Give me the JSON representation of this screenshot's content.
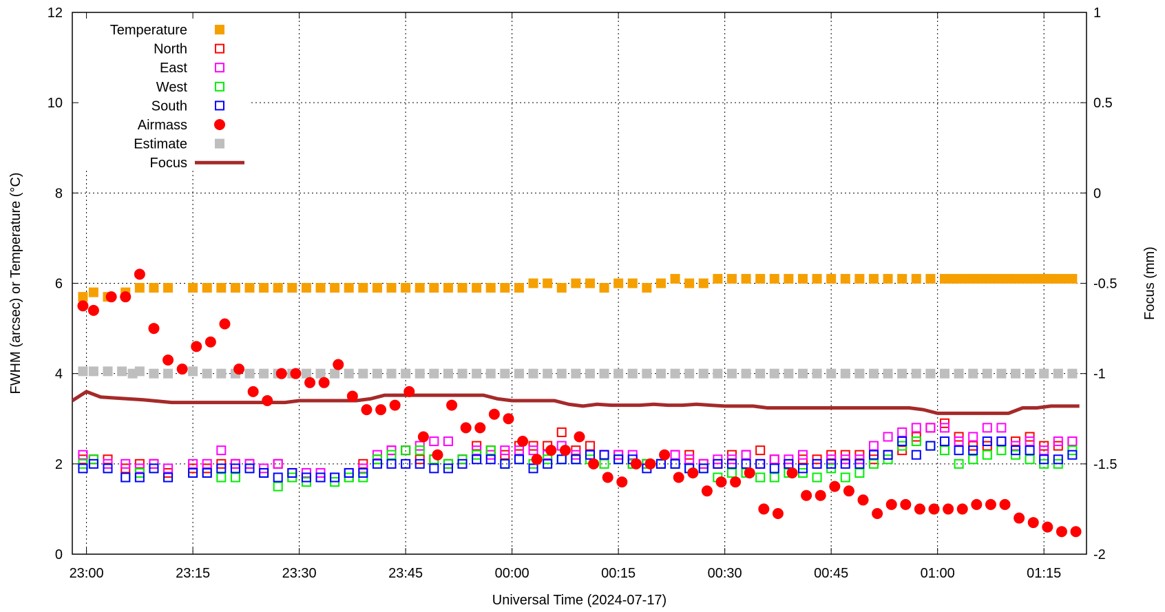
{
  "chart_data": {
    "type": "scatter",
    "title": "",
    "xlabel": "Universal Time (2024-07-17)",
    "ylabel": "FWHM (arcsec) or Temperature (°C)",
    "y2label": "Focus (mm)",
    "x_unit": "minutes after 23:00 UT (2024-07-17)",
    "xlim": [
      -2,
      141
    ],
    "ylim": [
      0,
      12
    ],
    "y2lim": [
      -2,
      1
    ],
    "x_ticks": [
      {
        "value": 0,
        "label": "23:00"
      },
      {
        "value": 15,
        "label": "23:15"
      },
      {
        "value": 30,
        "label": "23:30"
      },
      {
        "value": 45,
        "label": "23:45"
      },
      {
        "value": 60,
        "label": "00:00"
      },
      {
        "value": 75,
        "label": "00:15"
      },
      {
        "value": 90,
        "label": "00:30"
      },
      {
        "value": 105,
        "label": "00:45"
      },
      {
        "value": 120,
        "label": "01:00"
      },
      {
        "value": 135,
        "label": "01:15"
      }
    ],
    "y_ticks": [
      0,
      2,
      4,
      6,
      8,
      10,
      12
    ],
    "y2_ticks": [
      {
        "value": -2,
        "label": "-2"
      },
      {
        "value": -1.5,
        "label": "-1.5"
      },
      {
        "value": -1,
        "label": "-1"
      },
      {
        "value": -0.5,
        "label": "-0.5"
      },
      {
        "value": 0,
        "label": "0"
      },
      {
        "value": 0.5,
        "label": "0.5"
      },
      {
        "value": 1,
        "label": "1"
      }
    ],
    "grid": true,
    "legend_position": "top-left",
    "series": [
      {
        "name": "Temperature",
        "marker": "filled-square",
        "color": "#f5a000",
        "axis": "y",
        "x": [
          -0.5,
          1,
          3,
          5.5,
          7.5,
          9.5,
          11.5,
          15,
          17,
          19,
          21,
          23,
          25,
          27,
          29,
          31,
          33,
          35,
          37,
          39,
          41,
          43,
          45,
          47,
          49,
          51,
          53,
          55,
          57,
          59,
          61,
          63,
          65,
          67,
          69,
          71,
          73,
          75,
          77,
          79,
          81,
          83,
          85,
          87,
          89,
          91,
          93,
          95,
          97,
          99,
          101,
          103,
          105,
          107,
          109,
          111,
          113,
          115,
          117,
          119,
          121,
          122,
          123,
          124,
          125,
          126,
          127,
          128,
          129,
          130,
          131,
          132,
          133,
          134,
          135,
          136,
          137,
          138,
          139
        ],
        "y": [
          5.7,
          5.8,
          5.7,
          5.8,
          5.9,
          5.9,
          5.9,
          5.9,
          5.9,
          5.9,
          5.9,
          5.9,
          5.9,
          5.9,
          5.9,
          5.9,
          5.9,
          5.9,
          5.9,
          5.9,
          5.9,
          5.9,
          5.9,
          5.9,
          5.9,
          5.9,
          5.9,
          5.9,
          5.9,
          5.9,
          5.9,
          6.0,
          6.0,
          5.9,
          6.0,
          6.0,
          5.9,
          6.0,
          6.0,
          5.9,
          6.0,
          6.1,
          6.0,
          6.0,
          6.1,
          6.1,
          6.1,
          6.1,
          6.1,
          6.1,
          6.1,
          6.1,
          6.1,
          6.1,
          6.1,
          6.1,
          6.1,
          6.1,
          6.1,
          6.1,
          6.1,
          6.1,
          6.1,
          6.1,
          6.1,
          6.1,
          6.1,
          6.1,
          6.1,
          6.1,
          6.1,
          6.1,
          6.1,
          6.1,
          6.1,
          6.1,
          6.1,
          6.1,
          6.1
        ]
      },
      {
        "name": "Estimate",
        "marker": "filled-square",
        "color": "#bebebe",
        "axis": "y",
        "x": [
          -0.5,
          1,
          3,
          5,
          6.5,
          7.5,
          9.5,
          11.5,
          15,
          17,
          19,
          21,
          23,
          25,
          27,
          29,
          31,
          33,
          35,
          37,
          39,
          41,
          43,
          45,
          47,
          49,
          51,
          53,
          55,
          57,
          59,
          61,
          63,
          65,
          67,
          69,
          71,
          73,
          75,
          77,
          79,
          81,
          83,
          85,
          87,
          89,
          91,
          93,
          95,
          97,
          99,
          101,
          103,
          105,
          107,
          109,
          111,
          113,
          115,
          117,
          119,
          121,
          123,
          125,
          127,
          129,
          131,
          133,
          135,
          137,
          139
        ],
        "y": [
          4.05,
          4.05,
          4.05,
          4.05,
          4.0,
          4.05,
          4.0,
          4.0,
          4.05,
          4.0,
          4.0,
          4.0,
          4.0,
          4.0,
          4.0,
          4.0,
          4.0,
          4.0,
          4.0,
          4.0,
          4.0,
          4.0,
          4.0,
          4.0,
          4.0,
          4.0,
          4.0,
          4.0,
          4.0,
          4.0,
          4.0,
          4.0,
          4.0,
          4.0,
          4.0,
          4.0,
          4.0,
          4.0,
          4.0,
          4.0,
          4.0,
          4.0,
          4.0,
          4.0,
          4.0,
          4.0,
          4.0,
          4.0,
          4.0,
          4.0,
          4.0,
          4.0,
          4.0,
          4.0,
          4.0,
          4.0,
          4.0,
          4.0,
          4.0,
          4.0,
          4.0,
          4.0,
          4.0,
          4.0,
          4.0,
          4.0,
          4.0,
          4.0,
          4.0,
          4.0,
          4.0
        ]
      },
      {
        "name": "North",
        "marker": "open-square",
        "color": "#ff0000",
        "axis": "y",
        "x": [
          -0.5,
          1,
          3,
          5.5,
          7.5,
          9.5,
          11.5,
          15,
          17,
          19,
          21,
          23,
          25,
          27,
          29,
          31,
          33,
          35,
          37,
          39,
          41,
          43,
          45,
          47,
          49,
          51,
          53,
          55,
          57,
          59,
          61,
          63,
          65,
          67,
          69,
          71,
          73,
          75,
          77,
          79,
          81,
          83,
          85,
          87,
          89,
          91,
          93,
          95,
          97,
          99,
          101,
          103,
          105,
          107,
          109,
          111,
          113,
          115,
          117,
          119,
          121,
          123,
          125,
          127,
          129,
          131,
          133,
          135,
          137,
          139
        ],
        "y": [
          2.1,
          2.1,
          2.1,
          1.9,
          2.0,
          2.0,
          1.8,
          1.9,
          1.9,
          2.0,
          2.0,
          2.0,
          1.8,
          2.0,
          1.8,
          1.7,
          1.7,
          1.7,
          1.7,
          2.0,
          2.1,
          2.3,
          2.3,
          2.1,
          2.1,
          2.0,
          2.1,
          2.4,
          2.3,
          2.2,
          2.4,
          2.4,
          2.4,
          2.7,
          2.3,
          2.4,
          2.2,
          2.2,
          2.0,
          2.0,
          2.0,
          2.2,
          2.2,
          2.0,
          2.0,
          2.2,
          2.2,
          2.3,
          2.1,
          2.0,
          2.1,
          2.1,
          2.2,
          2.2,
          2.2,
          2.1,
          2.2,
          2.3,
          2.6,
          2.8,
          2.9,
          2.6,
          2.4,
          2.4,
          2.5,
          2.5,
          2.6,
          2.4,
          2.4,
          2.5
        ]
      },
      {
        "name": "East",
        "marker": "open-square",
        "color": "#ff00ff",
        "axis": "y",
        "x": [
          -0.5,
          1,
          3,
          5.5,
          7.5,
          9.5,
          11.5,
          15,
          17,
          19,
          21,
          23,
          25,
          27,
          29,
          31,
          33,
          35,
          37,
          39,
          41,
          43,
          45,
          47,
          49,
          51,
          53,
          55,
          57,
          59,
          61,
          63,
          65,
          67,
          69,
          71,
          73,
          75,
          77,
          79,
          81,
          83,
          85,
          87,
          89,
          91,
          93,
          95,
          97,
          99,
          101,
          103,
          105,
          107,
          109,
          111,
          113,
          115,
          117,
          119,
          121,
          123,
          125,
          127,
          129,
          131,
          133,
          135,
          137,
          139
        ],
        "y": [
          2.2,
          2.1,
          2.0,
          2.0,
          1.9,
          2.0,
          1.9,
          2.0,
          2.0,
          2.3,
          2.0,
          2.0,
          1.9,
          2.0,
          1.7,
          1.8,
          1.8,
          1.7,
          1.8,
          1.9,
          2.2,
          2.3,
          2.3,
          2.4,
          2.5,
          2.5,
          2.1,
          2.3,
          2.2,
          2.3,
          2.3,
          2.3,
          2.2,
          2.4,
          2.2,
          2.2,
          2.2,
          2.2,
          2.2,
          2.0,
          2.0,
          2.2,
          2.1,
          2.0,
          2.1,
          2.1,
          2.2,
          2.0,
          2.1,
          2.1,
          2.2,
          2.0,
          2.1,
          2.1,
          2.1,
          2.4,
          2.6,
          2.7,
          2.8,
          2.8,
          2.8,
          2.5,
          2.6,
          2.8,
          2.8,
          2.4,
          2.5,
          2.3,
          2.5,
          2.5
        ]
      },
      {
        "name": "West",
        "marker": "open-square",
        "color": "#00ee00",
        "axis": "y",
        "x": [
          -0.5,
          1,
          3,
          5.5,
          7.5,
          9.5,
          11.5,
          15,
          17,
          19,
          21,
          23,
          25,
          27,
          29,
          31,
          33,
          35,
          37,
          39,
          41,
          43,
          45,
          47,
          49,
          51,
          53,
          55,
          57,
          59,
          61,
          63,
          65,
          67,
          69,
          71,
          73,
          75,
          77,
          79,
          81,
          83,
          85,
          87,
          89,
          91,
          93,
          95,
          97,
          99,
          101,
          103,
          105,
          107,
          109,
          111,
          113,
          115,
          117,
          119,
          121,
          123,
          125,
          127,
          129,
          131,
          133,
          135,
          137,
          139
        ],
        "y": [
          2.0,
          2.1,
          1.9,
          1.7,
          1.8,
          1.9,
          1.7,
          1.8,
          1.8,
          1.7,
          1.7,
          1.9,
          1.8,
          1.5,
          1.7,
          1.6,
          1.7,
          1.6,
          1.7,
          1.7,
          2.1,
          2.2,
          2.3,
          2.3,
          2.1,
          2.0,
          2.1,
          2.2,
          2.3,
          2.0,
          2.1,
          2.0,
          2.1,
          2.1,
          2.1,
          2.1,
          2.0,
          2.1,
          2.0,
          2.0,
          2.0,
          2.0,
          1.9,
          1.9,
          1.7,
          1.8,
          1.8,
          1.7,
          1.7,
          1.8,
          1.8,
          1.7,
          1.9,
          1.7,
          1.8,
          2.0,
          2.1,
          2.4,
          2.5,
          2.4,
          2.3,
          2.0,
          2.1,
          2.2,
          2.3,
          2.2,
          2.1,
          2.0,
          2.0,
          2.3
        ]
      },
      {
        "name": "South",
        "marker": "open-square",
        "color": "#0000ff",
        "axis": "y",
        "x": [
          -0.5,
          1,
          3,
          5.5,
          7.5,
          9.5,
          11.5,
          15,
          17,
          19,
          21,
          23,
          25,
          27,
          29,
          31,
          33,
          35,
          37,
          39,
          41,
          43,
          45,
          47,
          49,
          51,
          53,
          55,
          57,
          59,
          61,
          63,
          65,
          67,
          69,
          71,
          73,
          75,
          77,
          79,
          81,
          83,
          85,
          87,
          89,
          91,
          93,
          95,
          97,
          99,
          101,
          103,
          105,
          107,
          109,
          111,
          113,
          115,
          117,
          119,
          121,
          123,
          125,
          127,
          129,
          131,
          133,
          135,
          137,
          139
        ],
        "y": [
          1.9,
          2.0,
          1.9,
          1.7,
          1.7,
          1.9,
          1.7,
          1.8,
          1.8,
          1.9,
          1.9,
          1.9,
          1.8,
          1.7,
          1.8,
          1.7,
          1.7,
          1.7,
          1.8,
          1.8,
          2.0,
          2.0,
          2.0,
          2.0,
          1.9,
          1.9,
          2.0,
          2.1,
          2.1,
          2.0,
          2.1,
          1.9,
          2.0,
          2.1,
          2.1,
          2.2,
          2.2,
          2.1,
          2.1,
          1.9,
          2.0,
          2.0,
          1.9,
          1.9,
          2.0,
          2.0,
          2.0,
          2.0,
          1.9,
          2.0,
          1.9,
          2.0,
          2.0,
          2.0,
          2.0,
          2.2,
          2.2,
          2.5,
          2.2,
          2.4,
          2.5,
          2.3,
          2.3,
          2.5,
          2.5,
          2.3,
          2.3,
          2.1,
          2.1,
          2.2
        ]
      },
      {
        "name": "Airmass",
        "marker": "filled-circle",
        "color": "#ff0000",
        "axis": "y",
        "x": [
          -0.5,
          1,
          3.5,
          5.5,
          7.5,
          9.5,
          11.5,
          13.5,
          15.5,
          17.5,
          19.5,
          21.5,
          23.5,
          25.5,
          27.5,
          29.5,
          31.5,
          33.5,
          35.5,
          37.5,
          39.5,
          41.5,
          43.5,
          45.5,
          47.5,
          49.5,
          51.5,
          53.5,
          55.5,
          57.5,
          59.5,
          61.5,
          63.5,
          65.5,
          67.5,
          69.5,
          71.5,
          73.5,
          75.5,
          77.5,
          79.5,
          81.5,
          83.5,
          85.5,
          87.5,
          89.5,
          91.5,
          93.5,
          95.5,
          97.5,
          99.5,
          101.5,
          103.5,
          105.5,
          107.5,
          109.5,
          111.5,
          113.5,
          115.5,
          117.5,
          119.5,
          121.5,
          123.5,
          125.5,
          127.5,
          129.5,
          131.5,
          133.5,
          135.5,
          137.5,
          139.5
        ],
        "y": [
          5.5,
          5.4,
          5.7,
          5.7,
          6.2,
          5.0,
          4.3,
          4.1,
          4.6,
          4.7,
          5.1,
          4.1,
          3.6,
          3.4,
          4.0,
          4.0,
          3.8,
          3.8,
          4.2,
          3.5,
          3.2,
          3.2,
          3.3,
          3.6,
          2.6,
          2.2,
          3.3,
          2.8,
          2.8,
          3.1,
          3.0,
          2.5,
          2.1,
          2.3,
          2.3,
          2.6,
          2.0,
          1.7,
          1.6,
          2.0,
          2.0,
          2.2,
          1.7,
          1.8,
          1.4,
          1.6,
          1.6,
          1.8,
          1.0,
          0.9,
          1.8,
          1.3,
          1.3,
          1.5,
          1.4,
          1.2,
          0.9,
          1.1,
          1.1,
          1.0,
          1.0,
          1.0,
          1.0,
          1.1,
          1.1,
          1.1,
          0.8,
          0.7,
          0.6,
          0.5,
          0.5
        ]
      },
      {
        "name": "Focus",
        "marker": "line",
        "color": "#a52a2a",
        "axis": "y2",
        "x": [
          -2,
          0,
          2,
          4,
          8,
          12,
          16,
          20,
          24,
          28,
          30,
          34,
          38,
          40,
          42,
          48,
          52,
          56,
          58,
          60,
          62,
          64,
          66,
          68,
          70,
          72,
          74,
          76,
          78,
          80,
          82,
          84,
          86,
          88,
          90,
          92,
          94,
          96,
          100,
          104,
          108,
          112,
          114,
          116,
          118,
          120,
          122,
          124,
          126,
          128,
          130,
          132,
          134,
          136,
          138,
          140
        ],
        "y": [
          -1.15,
          -1.1,
          -1.13,
          -1.135,
          -1.145,
          -1.16,
          -1.16,
          -1.16,
          -1.16,
          -1.16,
          -1.15,
          -1.15,
          -1.15,
          -1.14,
          -1.12,
          -1.12,
          -1.12,
          -1.12,
          -1.14,
          -1.15,
          -1.15,
          -1.15,
          -1.15,
          -1.17,
          -1.18,
          -1.17,
          -1.175,
          -1.175,
          -1.175,
          -1.17,
          -1.175,
          -1.175,
          -1.17,
          -1.175,
          -1.18,
          -1.18,
          -1.18,
          -1.19,
          -1.19,
          -1.19,
          -1.19,
          -1.19,
          -1.19,
          -1.19,
          -1.2,
          -1.22,
          -1.22,
          -1.22,
          -1.22,
          -1.22,
          -1.22,
          -1.19,
          -1.19,
          -1.18,
          -1.18,
          -1.18
        ]
      }
    ]
  }
}
